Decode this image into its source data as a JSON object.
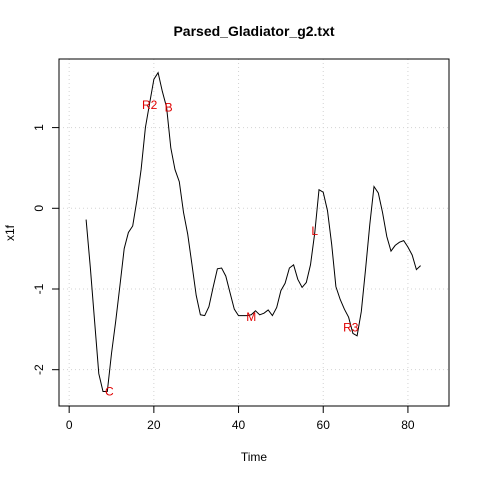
{
  "chart_data": {
    "type": "line",
    "title": "Parsed_Gladiator_g2.txt",
    "xlabel": "Time",
    "ylabel": "x1f",
    "xlim": [
      -2.4,
      89.7
    ],
    "ylim": [
      -2.45,
      1.85
    ],
    "xticks": [
      0,
      20,
      40,
      60,
      80
    ],
    "yticks": [
      -2,
      -1,
      0,
      1
    ],
    "xtick_labels": [
      "0",
      "20",
      "40",
      "60",
      "80"
    ],
    "ytick_labels": [
      "-2",
      "-1",
      "0",
      "1"
    ],
    "grid": true,
    "x": [
      4,
      5,
      6,
      7,
      8,
      9,
      10,
      11,
      12,
      13,
      14,
      15,
      16,
      17,
      18,
      19,
      20,
      21,
      22,
      23,
      24,
      25,
      26,
      27,
      28,
      29,
      30,
      31,
      32,
      33,
      34,
      35,
      36,
      37,
      38,
      39,
      40,
      41,
      42,
      43,
      44,
      45,
      46,
      47,
      48,
      49,
      50,
      51,
      52,
      53,
      54,
      55,
      56,
      57,
      58,
      59,
      60,
      61,
      62,
      63,
      64,
      65,
      66,
      67,
      68,
      69,
      70,
      71,
      72,
      73,
      74,
      75,
      76,
      77,
      78,
      79,
      80,
      81,
      82,
      83
    ],
    "y": [
      -0.14,
      -0.73,
      -1.4,
      -2.05,
      -2.27,
      -2.27,
      -1.8,
      -1.4,
      -0.95,
      -0.5,
      -0.3,
      -0.22,
      0.1,
      0.48,
      1.0,
      1.3,
      1.6,
      1.68,
      1.45,
      1.25,
      0.75,
      0.48,
      0.33,
      -0.05,
      -0.32,
      -0.7,
      -1.08,
      -1.32,
      -1.33,
      -1.22,
      -0.98,
      -0.75,
      -0.74,
      -0.84,
      -1.05,
      -1.25,
      -1.33,
      -1.33,
      -1.33,
      -1.32,
      -1.27,
      -1.32,
      -1.3,
      -1.26,
      -1.33,
      -1.23,
      -1.02,
      -0.93,
      -0.74,
      -0.7,
      -0.88,
      -0.98,
      -0.92,
      -0.7,
      -0.3,
      0.23,
      0.2,
      -0.03,
      -0.45,
      -0.97,
      -1.13,
      -1.25,
      -1.35,
      -1.55,
      -1.58,
      -1.28,
      -0.75,
      -0.2,
      0.27,
      0.19,
      -0.05,
      -0.35,
      -0.53,
      -0.46,
      -0.42,
      -0.4,
      -0.48,
      -0.58,
      -0.76,
      -0.71
    ],
    "annotations": [
      {
        "text": "R2",
        "x": 19,
        "y": 1.28
      },
      {
        "text": "B",
        "x": 23.5,
        "y": 1.25
      },
      {
        "text": "C",
        "x": 9.5,
        "y": -2.27
      },
      {
        "text": "M",
        "x": 43,
        "y": -1.35
      },
      {
        "text": "L",
        "x": 58,
        "y": -0.28
      },
      {
        "text": "R3",
        "x": 66.5,
        "y": -1.48
      }
    ],
    "colors": {
      "line": "#000000",
      "annotation": "#e00000",
      "grid": "#d3d3d3"
    }
  }
}
